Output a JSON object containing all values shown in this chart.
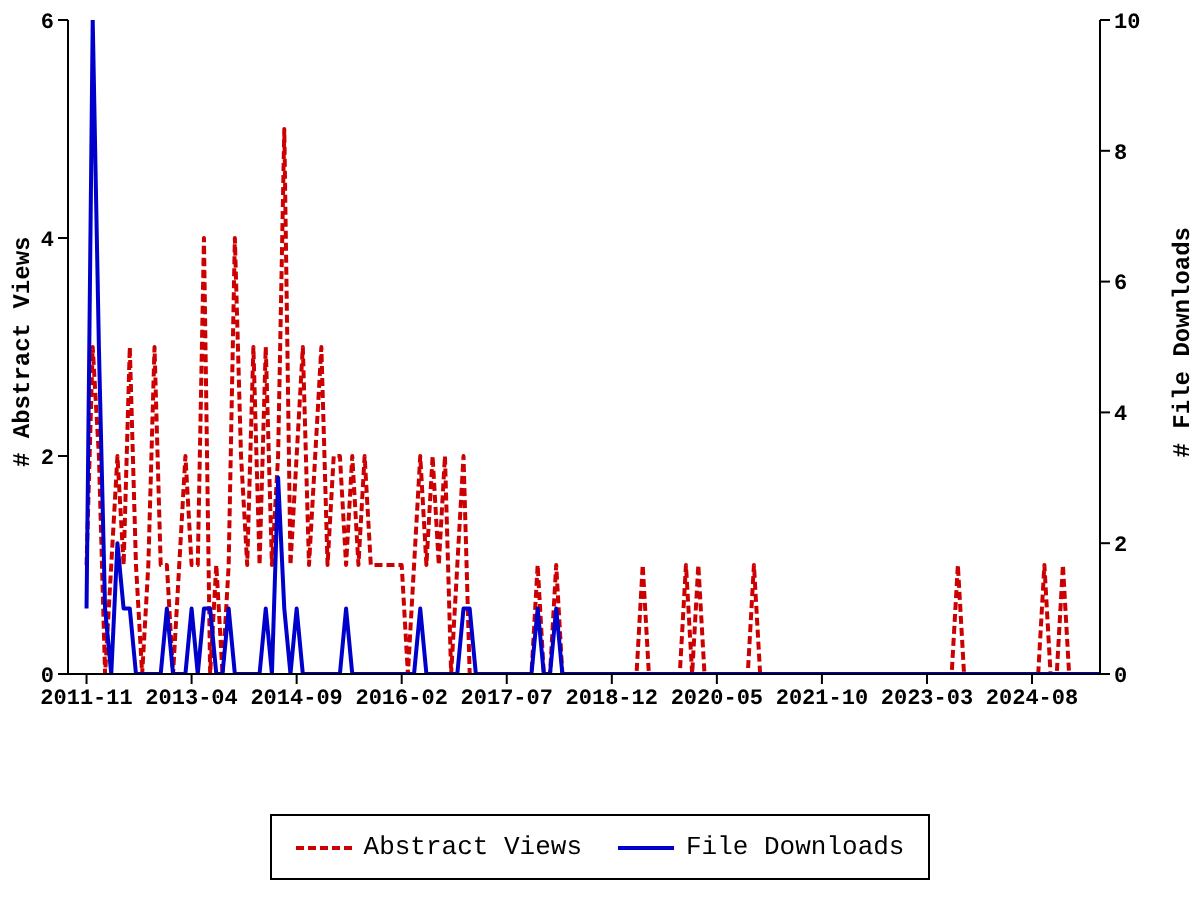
{
  "chart_data": {
    "type": "line",
    "xlabel": null,
    "ylabel": "# Abstract Views",
    "y2label": "# File Downloads",
    "x": [
      "2011-11",
      "2011-12",
      "2012-01",
      "2012-02",
      "2012-03",
      "2012-04",
      "2012-05",
      "2012-06",
      "2012-07",
      "2012-08",
      "2012-09",
      "2012-10",
      "2012-11",
      "2012-12",
      "2013-01",
      "2013-02",
      "2013-03",
      "2013-04",
      "2013-05",
      "2013-06",
      "2013-07",
      "2013-08",
      "2013-09",
      "2013-10",
      "2013-11",
      "2013-12",
      "2014-01",
      "2014-02",
      "2014-03",
      "2014-04",
      "2014-05",
      "2014-06",
      "2014-07",
      "2014-08",
      "2014-09",
      "2014-10",
      "2014-11",
      "2014-12",
      "2015-01",
      "2015-02",
      "2015-03",
      "2015-04",
      "2015-05",
      "2015-06",
      "2015-07",
      "2015-08",
      "2015-09",
      "2015-10",
      "2015-11",
      "2015-12",
      "2016-01",
      "2016-02",
      "2016-03",
      "2016-04",
      "2016-05",
      "2016-06",
      "2016-07",
      "2016-08",
      "2016-09",
      "2016-10",
      "2016-11",
      "2016-12",
      "2017-01",
      "2017-02",
      "2017-03",
      "2017-04",
      "2017-05",
      "2017-06",
      "2017-07",
      "2017-08",
      "2017-09",
      "2017-10",
      "2017-11",
      "2017-12",
      "2018-01",
      "2018-02",
      "2018-03",
      "2018-04",
      "2018-05",
      "2018-06",
      "2018-07",
      "2018-08",
      "2018-09",
      "2018-10",
      "2018-11",
      "2018-12",
      "2019-01",
      "2019-02",
      "2019-03",
      "2019-04",
      "2019-05",
      "2019-06",
      "2019-07",
      "2019-08",
      "2019-09",
      "2019-10",
      "2019-11",
      "2019-12",
      "2020-01",
      "2020-02",
      "2020-03",
      "2020-04",
      "2020-05",
      "2020-06",
      "2020-07",
      "2020-08",
      "2020-09",
      "2020-10",
      "2020-11",
      "2020-12",
      "2021-01",
      "2021-02",
      "2021-03",
      "2021-04",
      "2021-05",
      "2021-06",
      "2021-07",
      "2021-08",
      "2021-09",
      "2021-10",
      "2021-11",
      "2021-12",
      "2022-01",
      "2022-02",
      "2022-03",
      "2022-04",
      "2022-05",
      "2022-06",
      "2022-07",
      "2022-08",
      "2022-09",
      "2022-10",
      "2022-11",
      "2022-12",
      "2023-01",
      "2023-02",
      "2023-03",
      "2023-04",
      "2023-05",
      "2023-06",
      "2023-07",
      "2023-08",
      "2023-09",
      "2023-10",
      "2023-11",
      "2023-12",
      "2024-01",
      "2024-02",
      "2024-03",
      "2024-04",
      "2024-05",
      "2024-06",
      "2024-07",
      "2024-08",
      "2024-09",
      "2024-10",
      "2024-11",
      "2024-12",
      "2025-01",
      "2025-02",
      "2025-03",
      "2025-04",
      "2025-05",
      "2025-06",
      "2025-07"
    ],
    "series": [
      {
        "name": "Abstract Views",
        "color": "#cc0000",
        "line_style": "dashed",
        "values": [
          1,
          3,
          2,
          0,
          1,
          2,
          1,
          3,
          1,
          0,
          1,
          3,
          1,
          1,
          0,
          1,
          2,
          1,
          1,
          4,
          0,
          1,
          0,
          1,
          4,
          2,
          1,
          3,
          1,
          3,
          1,
          2,
          5,
          1,
          2,
          3,
          1,
          2,
          3,
          1,
          2,
          2,
          1,
          2,
          1,
          2,
          1,
          1,
          1,
          1,
          1,
          1,
          0,
          1,
          2,
          1,
          2,
          1,
          2,
          0,
          1,
          2,
          0,
          0,
          0,
          0,
          0,
          0,
          0,
          0,
          0,
          0,
          0,
          1,
          0,
          0,
          1,
          0,
          0,
          0,
          0,
          0,
          0,
          0,
          0,
          0,
          0,
          0,
          0,
          0,
          1,
          0,
          0,
          0,
          0,
          0,
          0,
          1,
          0,
          1,
          0,
          0,
          0,
          0,
          0,
          0,
          0,
          0,
          1,
          0,
          0,
          0,
          0,
          0,
          0,
          0,
          0,
          0,
          0,
          0,
          0,
          0,
          0,
          0,
          0,
          0,
          0,
          0,
          0,
          0,
          0,
          0,
          0,
          0,
          0,
          0,
          0,
          0,
          0,
          0,
          0,
          1,
          0,
          0,
          0,
          0,
          0,
          0,
          0,
          0,
          0,
          0,
          0,
          0,
          0,
          1,
          0,
          0,
          1,
          0,
          0,
          0,
          0,
          null,
          null
        ]
      },
      {
        "name": "File Downloads",
        "color": "#0000cc",
        "line_style": "solid",
        "axis": "y2",
        "values": [
          1,
          10,
          5,
          1,
          0,
          2,
          1,
          1,
          0,
          0,
          0,
          0,
          0,
          1,
          0,
          0,
          0,
          1,
          0,
          1,
          1,
          0,
          0,
          1,
          0,
          0,
          0,
          0,
          0,
          1,
          0,
          3,
          1,
          0,
          1,
          0,
          0,
          0,
          0,
          0,
          0,
          0,
          1,
          0,
          0,
          0,
          0,
          0,
          0,
          0,
          0,
          0,
          0,
          0,
          1,
          0,
          0,
          0,
          0,
          0,
          0,
          1,
          1,
          0,
          0,
          0,
          0,
          0,
          0,
          0,
          0,
          0,
          0,
          1,
          0,
          0,
          1,
          0,
          0,
          0,
          0,
          0,
          0,
          0,
          0,
          0,
          0,
          0,
          0,
          0,
          0,
          0,
          0,
          0,
          0,
          0,
          0,
          0,
          0,
          0,
          0,
          0,
          0,
          0,
          0,
          0,
          0,
          0,
          0,
          0,
          0,
          0,
          0,
          0,
          0,
          0,
          0,
          0,
          0,
          0,
          0,
          0,
          0,
          0,
          0,
          0,
          0,
          0,
          0,
          0,
          0,
          0,
          0,
          0,
          0,
          0,
          0,
          0,
          0,
          0,
          0,
          0,
          0,
          0,
          0,
          0,
          0,
          0,
          0,
          0,
          0,
          0,
          0,
          0,
          0,
          0,
          0,
          0,
          0,
          0,
          0,
          0,
          0,
          0,
          0
        ]
      }
    ],
    "xlim": [
      "2011-08",
      "2025-07"
    ],
    "xticks": [
      "2011-11",
      "2013-04",
      "2014-09",
      "2016-02",
      "2017-07",
      "2018-12",
      "2020-05",
      "2021-10",
      "2023-03",
      "2024-08"
    ],
    "ylim": [
      0,
      6
    ],
    "yticks": [
      0,
      2,
      4,
      6
    ],
    "y2lim": [
      0,
      10
    ],
    "y2ticks": [
      0,
      2,
      4,
      6,
      8,
      10
    ],
    "grid": false,
    "legend": "bottom",
    "marker": "none"
  }
}
